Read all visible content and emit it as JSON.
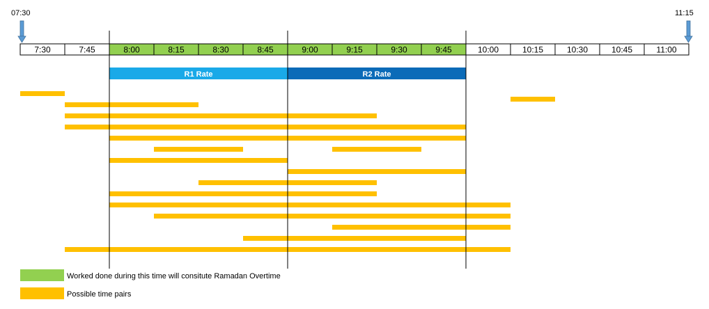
{
  "start_label": "07:30",
  "end_label": "11:15",
  "slots": [
    "7:30",
    "7:45",
    "8:00",
    "8:15",
    "8:30",
    "8:45",
    "9:00",
    "9:15",
    "9:30",
    "9:45",
    "10:00",
    "10:15",
    "10:30",
    "10:45",
    "11:00"
  ],
  "highlight_range": [
    2,
    9
  ],
  "rates": [
    {
      "label": "R1 Rate",
      "from": 2,
      "to": 6,
      "color": "#1aa9e8"
    },
    {
      "label": "R2 Rate",
      "from": 6,
      "to": 10,
      "color": "#0b6bb8"
    }
  ],
  "divider_slots": [
    2,
    6,
    10
  ],
  "time_pairs": [
    [
      [
        0,
        1
      ],
      [
        11,
        12
      ]
    ],
    [
      [
        1,
        4
      ]
    ],
    [
      [
        1,
        8
      ]
    ],
    [
      [
        1,
        10
      ]
    ],
    [
      [
        2,
        10
      ]
    ],
    [
      [
        3,
        5
      ],
      [
        7,
        9
      ]
    ],
    [
      [
        2,
        6
      ]
    ],
    [
      [
        6,
        10
      ]
    ],
    [
      [
        4,
        8
      ]
    ],
    [
      [
        2,
        8
      ]
    ],
    [
      [
        2,
        11
      ]
    ],
    [
      [
        3,
        11
      ]
    ],
    [
      [
        7,
        11
      ]
    ],
    [
      [
        5,
        10
      ]
    ],
    [
      [
        1,
        11
      ]
    ]
  ],
  "colors": {
    "highlight": "#92d050",
    "pair": "#ffc000",
    "arrow": "#5b9bd5",
    "border": "#000000"
  },
  "legend": [
    {
      "color": "#92d050",
      "label": "Worked done during this time will consitute Ramadan Overtime"
    },
    {
      "color": "#ffc000",
      "label": "Possible time pairs"
    }
  ]
}
